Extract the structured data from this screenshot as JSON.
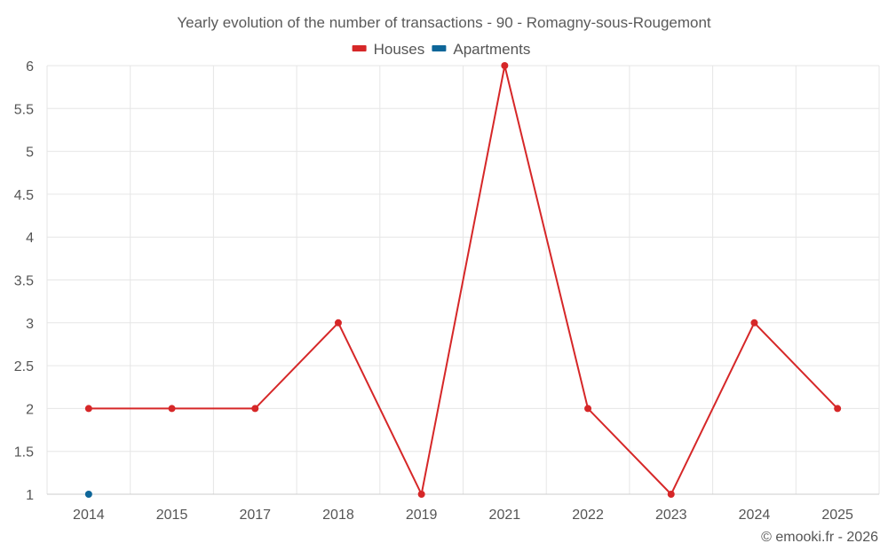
{
  "chart_data": {
    "type": "line",
    "title": "Yearly evolution of the number of transactions - 90 - Romagny-sous-Rougemont",
    "categories": [
      "2014",
      "2015",
      "2017",
      "2018",
      "2019",
      "2021",
      "2022",
      "2023",
      "2024",
      "2025"
    ],
    "series": [
      {
        "name": "Houses",
        "color": "#d62728",
        "values": [
          2,
          2,
          2,
          3,
          1,
          6,
          2,
          1,
          3,
          2
        ]
      },
      {
        "name": "Apartments",
        "color": "#0e6699",
        "values": [
          1,
          null,
          null,
          null,
          null,
          null,
          null,
          null,
          null,
          null
        ]
      }
    ],
    "ylim": [
      1,
      6
    ],
    "yticks": [
      "1",
      "1.5",
      "2",
      "2.5",
      "3",
      "3.5",
      "4",
      "4.5",
      "5",
      "5.5",
      "6"
    ],
    "grid": true,
    "legend_position": "top-center",
    "credit": "© emooki.fr - 2026"
  }
}
